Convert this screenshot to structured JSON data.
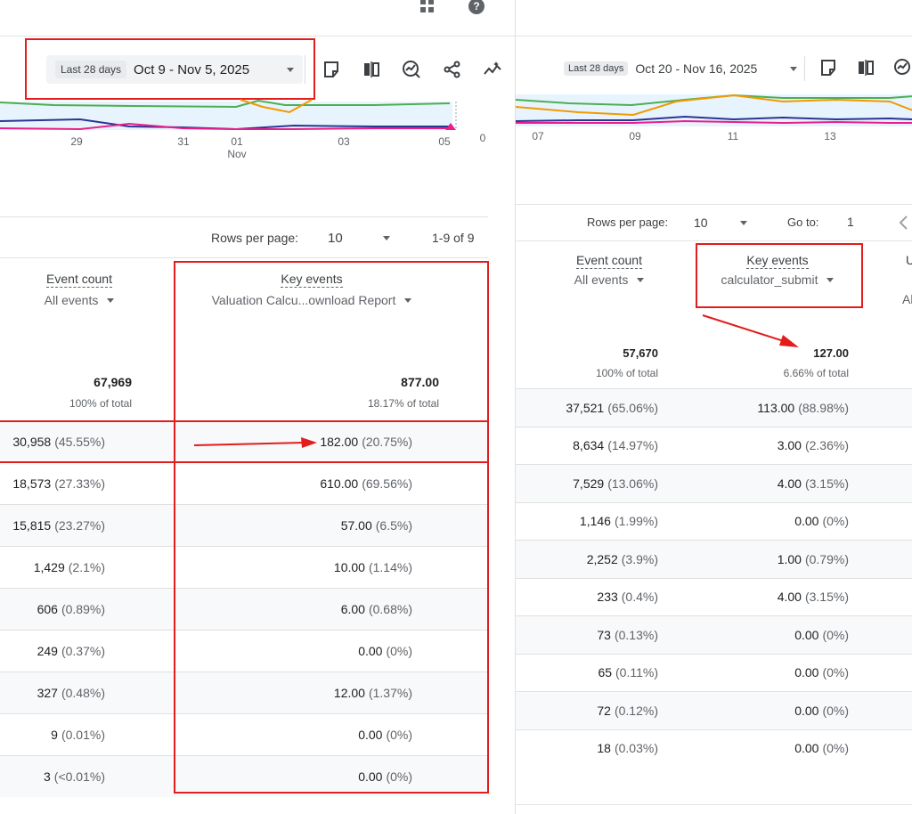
{
  "left": {
    "date_tag": "Last 28 days",
    "date_range": "Oct 9 - Nov 5, 2025",
    "axis": {
      "ticks": [
        "29",
        "31",
        "01",
        "03",
        "05"
      ],
      "month_label": "Nov",
      "right_value": "0"
    },
    "pager": {
      "rows_per_page_label": "Rows per page:",
      "rows_per_page_value": "10",
      "range_text": "1-9 of 9"
    },
    "columns": {
      "event_count": {
        "title": "Event count",
        "filter": "All events"
      },
      "key_events": {
        "title": "Key events",
        "filter": "Valuation Calcu...ownload Report"
      }
    },
    "totals": {
      "event_count": {
        "value": "67,969",
        "sub": "100% of total"
      },
      "key_events": {
        "value": "877.00",
        "sub": "18.17% of total"
      }
    },
    "rows": [
      {
        "ec": "30,958",
        "ec_pct": "(45.55%)",
        "ke": "182.00",
        "ke_pct": "(20.75%)"
      },
      {
        "ec": "18,573",
        "ec_pct": "(27.33%)",
        "ke": "610.00",
        "ke_pct": "(69.56%)"
      },
      {
        "ec": "15,815",
        "ec_pct": "(23.27%)",
        "ke": "57.00",
        "ke_pct": "(6.5%)"
      },
      {
        "ec": "1,429",
        "ec_pct": "(2.1%)",
        "ke": "10.00",
        "ke_pct": "(1.14%)"
      },
      {
        "ec": "606",
        "ec_pct": "(0.89%)",
        "ke": "6.00",
        "ke_pct": "(0.68%)"
      },
      {
        "ec": "249",
        "ec_pct": "(0.37%)",
        "ke": "0.00",
        "ke_pct": "(0%)"
      },
      {
        "ec": "327",
        "ec_pct": "(0.48%)",
        "ke": "12.00",
        "ke_pct": "(1.37%)"
      },
      {
        "ec": "9",
        "ec_pct": "(0.01%)",
        "ke": "0.00",
        "ke_pct": "(0%)"
      },
      {
        "ec": "3",
        "ec_pct": "(<0.01%)",
        "ke": "0.00",
        "ke_pct": "(0%)"
      }
    ]
  },
  "right": {
    "date_tag": "Last 28 days",
    "date_range": "Oct 20 - Nov 16, 2025",
    "axis": {
      "ticks": [
        "07",
        "09",
        "11",
        "13"
      ]
    },
    "pager": {
      "rows_per_page_label": "Rows per page:",
      "rows_per_page_value": "10",
      "goto_label": "Go to:",
      "goto_value": "1"
    },
    "columns": {
      "event_count": {
        "title": "Event count",
        "filter": "All events"
      },
      "key_events": {
        "title": "Key events",
        "filter": "calculator_submit"
      },
      "cut_title": "U",
      "cut_filter": "Al"
    },
    "totals": {
      "event_count": {
        "value": "57,670",
        "sub": "100% of total"
      },
      "key_events": {
        "value": "127.00",
        "sub": "6.66% of total"
      }
    },
    "rows": [
      {
        "ec": "37,521",
        "ec_pct": "(65.06%)",
        "ke": "113.00",
        "ke_pct": "(88.98%)"
      },
      {
        "ec": "8,634",
        "ec_pct": "(14.97%)",
        "ke": "3.00",
        "ke_pct": "(2.36%)"
      },
      {
        "ec": "7,529",
        "ec_pct": "(13.06%)",
        "ke": "4.00",
        "ke_pct": "(3.15%)"
      },
      {
        "ec": "1,146",
        "ec_pct": "(1.99%)",
        "ke": "0.00",
        "ke_pct": "(0%)"
      },
      {
        "ec": "2,252",
        "ec_pct": "(3.9%)",
        "ke": "1.00",
        "ke_pct": "(0.79%)"
      },
      {
        "ec": "233",
        "ec_pct": "(0.4%)",
        "ke": "4.00",
        "ke_pct": "(3.15%)"
      },
      {
        "ec": "73",
        "ec_pct": "(0.13%)",
        "ke": "0.00",
        "ke_pct": "(0%)"
      },
      {
        "ec": "65",
        "ec_pct": "(0.11%)",
        "ke": "0.00",
        "ke_pct": "(0%)"
      },
      {
        "ec": "72",
        "ec_pct": "(0.12%)",
        "ke": "0.00",
        "ke_pct": "(0%)"
      },
      {
        "ec": "18",
        "ec_pct": "(0.03%)",
        "ke": "0.00",
        "ke_pct": "(0%)"
      }
    ]
  },
  "colors": {
    "highlight_red": "#e31c1c",
    "series_green": "#4caf50",
    "series_navy": "#283593",
    "series_magenta": "#e91e8c",
    "series_orange": "#f29900",
    "chart_fill": "#e8f4fd"
  },
  "icons": {
    "apps": "apps-grid-icon",
    "help": "help-icon",
    "note": "note-icon",
    "compare": "compare-icon",
    "insights": "insights-icon",
    "share": "share-icon",
    "trend": "trend-icon"
  }
}
